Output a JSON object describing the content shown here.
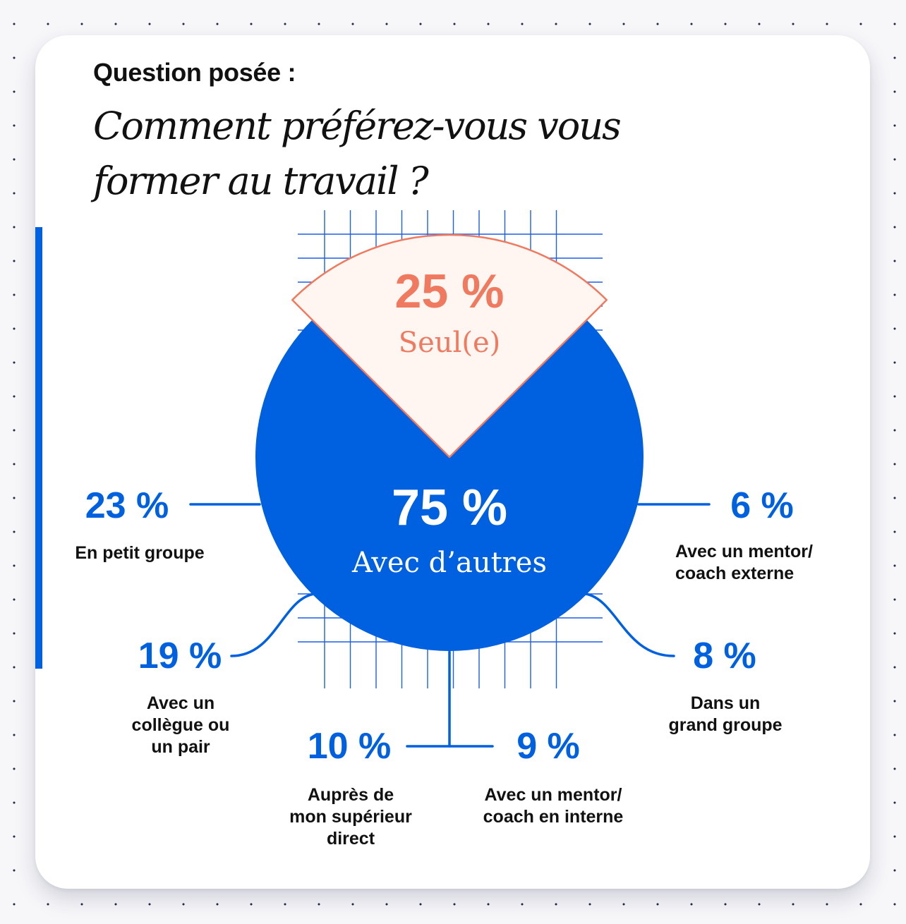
{
  "header": {
    "question_label": "Question posée :",
    "question": "Comment préférez-vous vous former au travail ?"
  },
  "colors": {
    "blue": "#0061E0",
    "coral": "#F07A60",
    "cream": "#FFF6F1",
    "text": "#111111",
    "grid": "#1D5FE8"
  },
  "chart_data": {
    "type": "pie",
    "title": "Comment préférez-vous vous former au travail ?",
    "slices": [
      {
        "label": "Seul(e)",
        "value": 25,
        "display": "25 %"
      },
      {
        "label": "Avec d’autres",
        "value": 75,
        "display": "75 %"
      }
    ],
    "breakdown": {
      "parent": "Avec d’autres",
      "items": [
        {
          "label": "En petit groupe",
          "value": 23,
          "display": "23 %"
        },
        {
          "label": "Avec un collègue ou un pair",
          "value": 19,
          "display": "19 %"
        },
        {
          "label": "Auprès de mon supérieur direct",
          "value": 10,
          "display": "10 %"
        },
        {
          "label": "Avec un mentor/ coach en interne",
          "value": 9,
          "display": "9 %"
        },
        {
          "label": "Dans un grand groupe",
          "value": 8,
          "display": "8 %"
        },
        {
          "label": "Avec un mentor/ coach externe",
          "value": 6,
          "display": "6 %"
        }
      ]
    }
  }
}
